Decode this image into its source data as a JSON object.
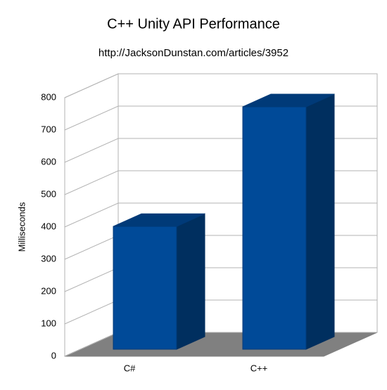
{
  "chart_data": {
    "type": "bar3d",
    "title": "C++ Unity API Performance",
    "subtitle": "http://JacksonDunstan.com/articles/3952",
    "y_label": "Milliseconds",
    "categories": [
      "C#",
      "C++"
    ],
    "values": [
      380,
      750
    ],
    "color": "#004a98",
    "ylim": [
      0,
      800
    ],
    "yticks": [
      0,
      100,
      200,
      300,
      400,
      500,
      600,
      700,
      800
    ],
    "grid": true
  }
}
